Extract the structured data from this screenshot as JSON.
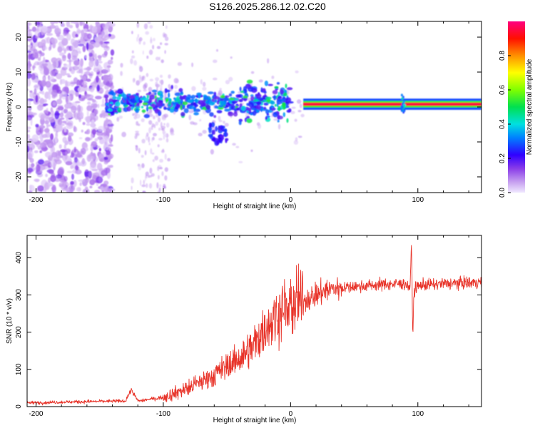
{
  "title": "S126.2025.286.12.02.C20",
  "colors": {
    "signal": "#e8342a",
    "frame": "#000000"
  },
  "chart_data": [
    {
      "type": "heatmap",
      "panel": "top",
      "title": "S126.2025.286.12.02.C20",
      "xlabel": "Height of straight line (km)",
      "ylabel": "Frequency (Hz)",
      "xlim": [
        -207,
        150
      ],
      "ylim": [
        -24.5,
        24.5
      ],
      "xticks": [
        -200,
        -100,
        0,
        100
      ],
      "yticks": [
        -20,
        -10,
        0,
        10,
        20
      ],
      "colorbar": {
        "label": "Normalized spectral amplitude",
        "range": [
          0,
          1
        ],
        "ticks": [
          "0.0",
          "0.2",
          "0.4",
          "0.6",
          "0.8"
        ],
        "tick_values": [
          0.0,
          0.2,
          0.4,
          0.6,
          0.8
        ]
      },
      "features": [
        {
          "name": "diffuse noise",
          "x_range": [
            -207,
            -140
          ],
          "freq_range": [
            -24.5,
            24.5
          ],
          "amplitude": 0.05
        },
        {
          "name": "scattered noise streak",
          "x_range": [
            -125,
            -95
          ],
          "freq_range": [
            -24.5,
            24.5
          ],
          "amplitude": 0.03
        },
        {
          "name": "broadened carrier",
          "x_range": [
            -145,
            0
          ],
          "center_freq": 1.2,
          "amplitude": 0.25
        },
        {
          "name": "deviated spike",
          "x_range": [
            -65,
            -50
          ],
          "freq_range": [
            -10.5,
            -5
          ],
          "amplitude": 0.15
        },
        {
          "name": "stable carrier",
          "x_range": [
            10,
            150
          ],
          "center_freq": 0.8,
          "amplitude": 0.95
        },
        {
          "name": "narrow disturbance",
          "x_range": [
            87,
            90
          ],
          "freq_range": [
            -1.5,
            4
          ],
          "amplitude": 0.4
        }
      ]
    },
    {
      "type": "line",
      "panel": "bottom",
      "xlabel": "Height of straight line (km)",
      "ylabel": "SNR (10 * v/v)",
      "xlim": [
        -207,
        150
      ],
      "ylim": [
        0,
        460
      ],
      "xticks": [
        -200,
        -100,
        0,
        100
      ],
      "yticks": [
        0,
        100,
        200,
        300,
        400
      ],
      "series": [
        {
          "name": "SNR",
          "x": [
            -207,
            -180,
            -150,
            -130,
            -125,
            -120,
            -100,
            -80,
            -60,
            -40,
            -30,
            -20,
            -10,
            0,
            10,
            20,
            30,
            40,
            60,
            80,
            90,
            94,
            95,
            96,
            97,
            100,
            120,
            150
          ],
          "y": [
            10,
            12,
            14,
            15,
            45,
            15,
            25,
            50,
            85,
            130,
            160,
            210,
            250,
            270,
            285,
            300,
            315,
            320,
            325,
            330,
            330,
            320,
            450,
            190,
            310,
            325,
            330,
            335
          ]
        }
      ]
    }
  ]
}
